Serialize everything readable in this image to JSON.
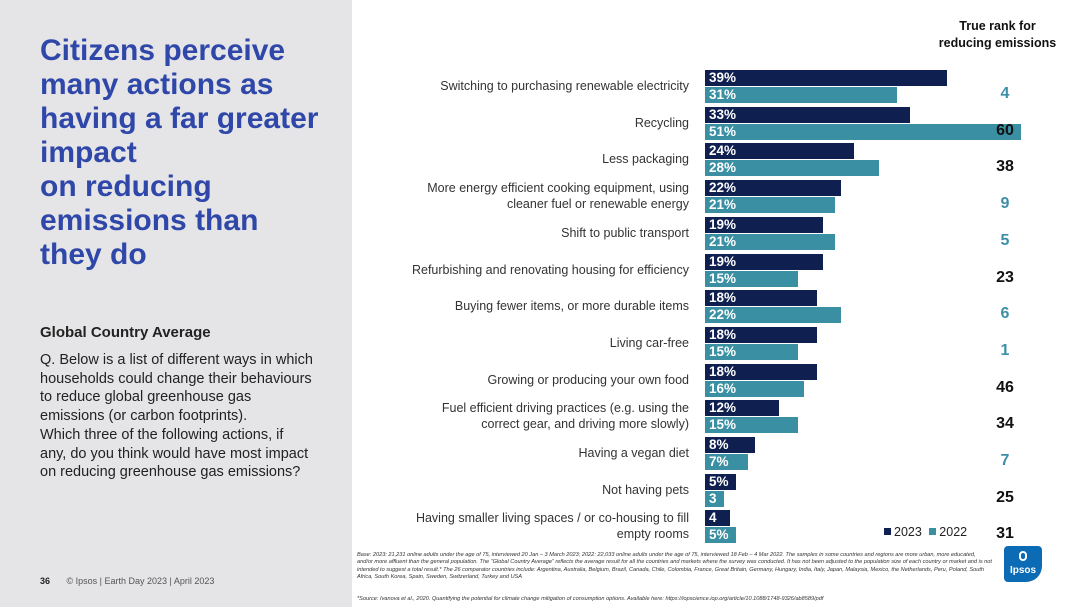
{
  "left": {
    "title_lines": [
      "Citizens perceive",
      "many actions as",
      "having a far greater",
      "impact",
      "on reducing",
      "emissions than",
      "they do"
    ],
    "subtitle": "Global Country Average",
    "question_lines": [
      "Q. Below is a list of different ways in which",
      "households could change their behaviours",
      "to reduce global greenhouse gas",
      "emissions (or carbon footprints).",
      "Which three of the following actions, if",
      "any, do you think would have most impact",
      "on reducing greenhouse gas emissions?"
    ],
    "footer_page": "36",
    "footer_text": "© Ipsos | Earth Day 2023 | April 2023"
  },
  "rank_header_lines": [
    "True rank for",
    "reducing emissions"
  ],
  "legend": {
    "label_2023": "2023",
    "label_2022": "2022"
  },
  "notes": {
    "base": "Base: 2023: 21,231 online adults under the age of 75, interviewed 20 Jan – 3 March 2023; 2022: 22,033 online adults under the age of 75, interviewed 18 Feb – 4 Mar 2022. The samples in some countries and regions are more urban, more educated, and/or more affluent than the general population. The “Global Country Average” reflects the average result for all the countries and markets where the survey was conducted. It has not been adjusted to the population size of each country or market and is not intended to suggest a total result.* The 26 comparator countries include: Argentina, Australia, Belgium, Brazil, Canada, Chile, Colombia, France, Great Britain, Germany, Hungary, India, Italy, Japan, Malaysia, Mexico, the Netherlands, Peru, Poland, South Africa, South Korea, Spain, Sweden, Switzerland, Turkey and USA",
    "source": "*Source: Ivanova et al., 2020. Quantifying the potential for climate change mitigation of consumption options. Available here: https://iopscience.iop.org/article/10.1088/1748-9326/ab8589/pdf"
  },
  "logo_text": "Ipsos",
  "colors": {
    "series_2023": "#0f1f4f",
    "series_2022": "#3a8fa2",
    "title": "#2f47a8",
    "rank_highlight": "#3d8fa8"
  },
  "chart_data": {
    "type": "bar",
    "orientation": "horizontal",
    "categories": [
      "Switching to purchasing renewable electricity",
      "Recycling",
      "Less packaging",
      "More energy efficient cooking equipment, using cleaner fuel or renewable energy",
      "Shift to public transport",
      "Refurbishing and renovating housing for efficiency",
      "Buying fewer items, or more durable items",
      "Living car-free",
      "Growing or producing your own food",
      "Fuel efficient driving practices (e.g. using the correct gear, and driving more slowly)",
      "Having a vegan diet",
      "Not having pets",
      "Having smaller living spaces / or co-housing to fill empty rooms"
    ],
    "category_lines": [
      [
        "Switching to purchasing renewable electricity"
      ],
      [
        "Recycling"
      ],
      [
        "Less packaging"
      ],
      [
        "More energy efficient cooking equipment, using",
        "cleaner fuel or renewable energy"
      ],
      [
        "Shift to public transport"
      ],
      [
        "Refurbishing and renovating housing for efficiency"
      ],
      [
        "Buying fewer items, or more durable items"
      ],
      [
        "Living car-free"
      ],
      [
        "Growing or producing your own food"
      ],
      [
        "Fuel efficient driving practices (e.g. using the",
        "correct gear, and driving more slowly)"
      ],
      [
        "Having a vegan diet"
      ],
      [
        "Not having pets"
      ],
      [
        "Having smaller living spaces / or co-housing to fill",
        "empty rooms"
      ]
    ],
    "series": [
      {
        "name": "2023",
        "values": [
          39,
          33,
          24,
          22,
          19,
          19,
          18,
          18,
          18,
          12,
          8,
          5,
          4
        ],
        "labels": [
          "39%",
          "33%",
          "24%",
          "22%",
          "19%",
          "19%",
          "18%",
          "18%",
          "18%",
          "12%",
          "8%",
          "5%",
          "4"
        ]
      },
      {
        "name": "2022",
        "values": [
          31,
          51,
          28,
          21,
          21,
          15,
          22,
          15,
          16,
          15,
          7,
          3,
          5
        ],
        "labels": [
          "31%",
          "51%",
          "28%",
          "21%",
          "21%",
          "15%",
          "22%",
          "15%",
          "16%",
          "15%",
          "7%",
          "3",
          "5%"
        ]
      }
    ],
    "true_rank": [
      4,
      60,
      38,
      9,
      5,
      23,
      6,
      1,
      46,
      34,
      7,
      25,
      31
    ],
    "true_rank_highlighted": [
      true,
      false,
      false,
      true,
      true,
      false,
      true,
      true,
      false,
      false,
      true,
      false,
      false
    ]
  }
}
